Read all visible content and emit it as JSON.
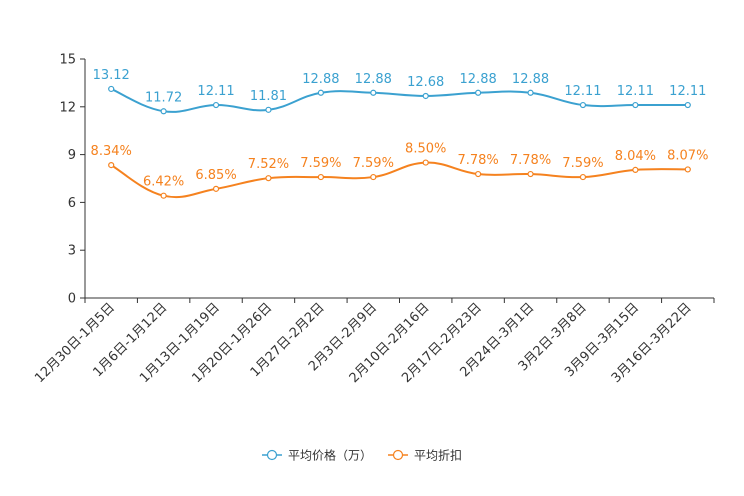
{
  "chart_data": {
    "type": "line",
    "title": "",
    "xlabel": "",
    "ylabel": "",
    "ylim": [
      0,
      15
    ],
    "yticks": [
      0,
      3,
      6,
      9,
      12,
      15
    ],
    "grid": false,
    "legend_position": "bottom-center",
    "categories": [
      "12月30日-1月5日",
      "1月6日-1月12日",
      "1月13日-1月19日",
      "1月20日-1月26日",
      "1月27日-2月2日",
      "2月3日-2月9日",
      "2月10日-2月16日",
      "2月17日-2月23日",
      "2月24日-3月1日",
      "3月2日-3月8日",
      "3月9日-3月15日",
      "3月16日-3月22日"
    ],
    "series": [
      {
        "name": "平均价格（万）",
        "color": "#3ba1d0",
        "values": [
          13.12,
          11.72,
          12.11,
          11.81,
          12.88,
          12.88,
          12.68,
          12.88,
          12.88,
          12.11,
          12.11,
          12.11
        ],
        "labels": [
          "13.12",
          "11.72",
          "12.11",
          "11.81",
          "12.88",
          "12.88",
          "12.68",
          "12.88",
          "12.88",
          "12.11",
          "12.11",
          "12.11"
        ]
      },
      {
        "name": "平均折扣",
        "color": "#f5821f",
        "values": [
          8.34,
          6.42,
          6.85,
          7.52,
          7.59,
          7.59,
          8.5,
          7.78,
          7.78,
          7.59,
          8.04,
          8.07
        ],
        "labels": [
          "8.34%",
          "6.42%",
          "6.85%",
          "7.52%",
          "7.59%",
          "7.59%",
          "8.50%",
          "7.78%",
          "7.78%",
          "7.59%",
          "8.04%",
          "8.07%"
        ]
      }
    ]
  }
}
